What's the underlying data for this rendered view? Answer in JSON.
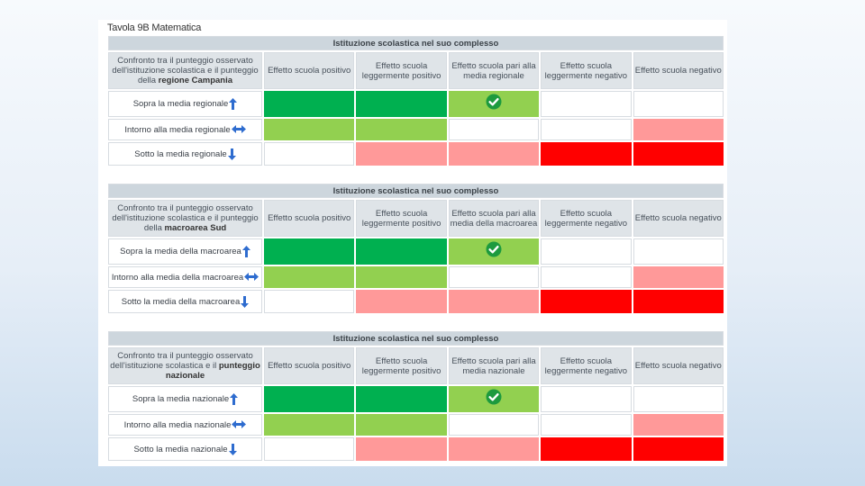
{
  "page": {
    "title": "Tavola 9B Matematica"
  },
  "colors": {
    "dark_green": "#00b050",
    "light_green": "#92d050",
    "pink": "#ff9999",
    "red": "#ff0000",
    "arrow_blue": "#2e6ccf"
  },
  "column_headers": [
    "Effetto scuola positivo",
    "Effetto scuola leggermente positivo",
    "",
    "Effetto scuola leggermente negativo",
    "Effetto scuola negativo"
  ],
  "tables": [
    {
      "section_title": "Istituzione scolastica nel suo complesso",
      "comparison_prefix": "Confronto tra il punteggio osservato dell'istituzione scolastica e il punteggio della ",
      "comparison_bold": "regione Campania",
      "middle_header": "Effetto scuola pari alla media regionale",
      "rows": {
        "sopra": "Sopra la media regionale",
        "intorno": "Intorno alla media regionale",
        "sotto": "Sotto la media regionale"
      }
    },
    {
      "section_title": "Istituzione scolastica nel suo complesso",
      "comparison_prefix": "Confronto tra il punteggio osservato dell'istituzione scolastica e il punteggio della ",
      "comparison_bold": "macroarea Sud",
      "middle_header": "Effetto scuola pari alla media della macroarea",
      "rows": {
        "sopra": "Sopra la media della macroarea",
        "intorno": "Intorno alla media della macroarea",
        "sotto": "Sotto la media della macroarea"
      }
    },
    {
      "section_title": "Istituzione scolastica nel suo complesso",
      "comparison_prefix": "Confronto tra il punteggio osservato dell'istituzione scolastica e il ",
      "comparison_bold": "punteggio nazionale",
      "middle_header": "Effetto scuola pari alla media nazionale",
      "rows": {
        "sopra": "Sopra la media nazionale",
        "intorno": "Intorno alla media nazionale",
        "sotto": "Sotto la media nazionale"
      }
    }
  ],
  "selected": {
    "row": "sopra",
    "column": 3
  }
}
